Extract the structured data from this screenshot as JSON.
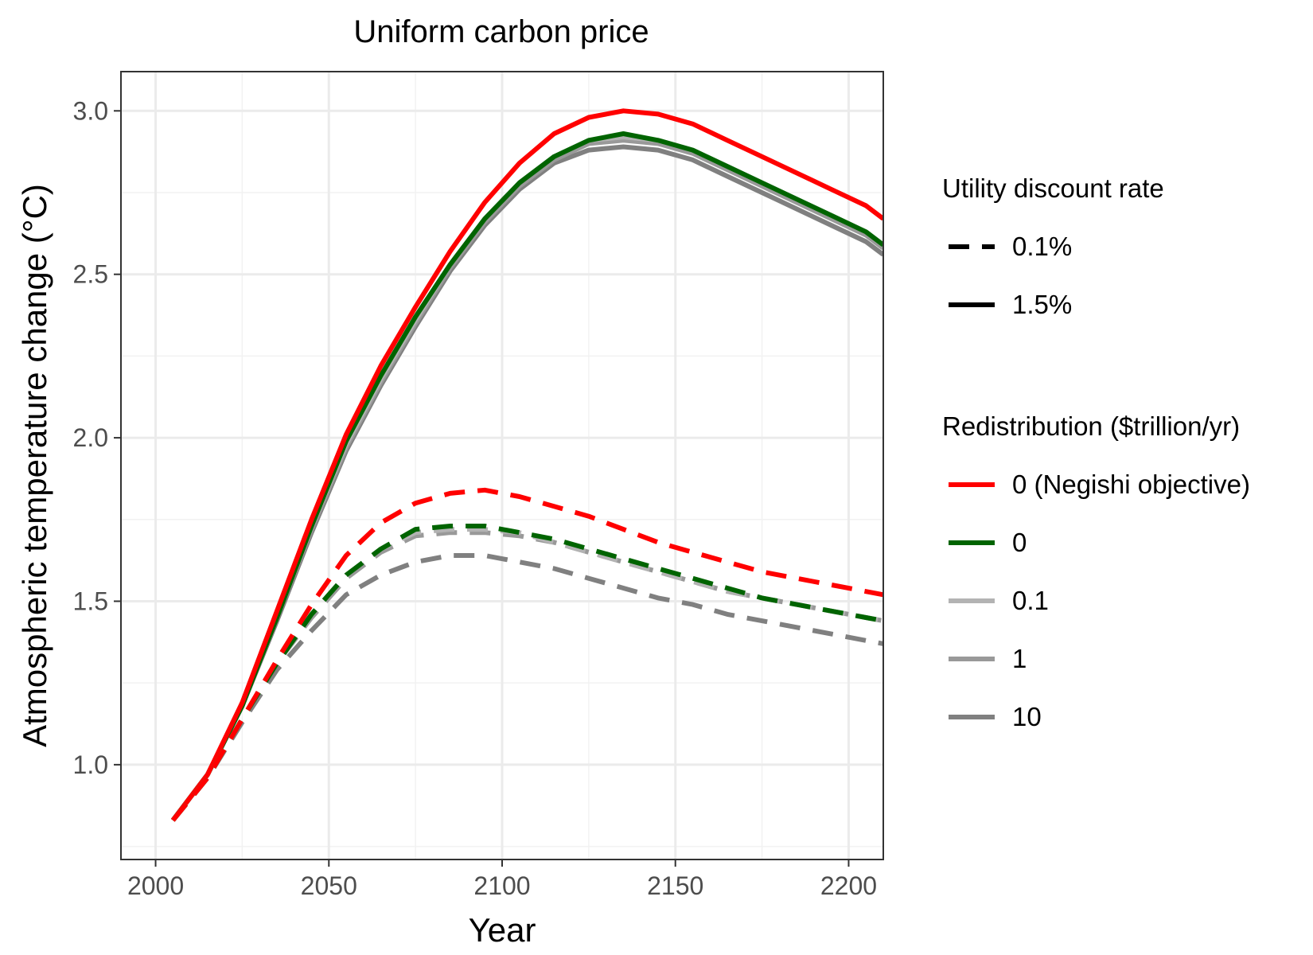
{
  "chart_data": {
    "type": "line",
    "title": "Uniform carbon price",
    "xlabel": "Year",
    "ylabel": "Atmospheric temperature change (°C)",
    "xlim": [
      1990,
      2210
    ],
    "ylim": [
      0.71,
      3.12
    ],
    "x_ticks": [
      "2000",
      "2050",
      "2100",
      "2150",
      "2200"
    ],
    "y_ticks": [
      "1.0",
      "1.5",
      "2.0",
      "2.5",
      "3.0"
    ],
    "grid": true,
    "legend_position": "right",
    "legends": [
      {
        "title": "Utility discount rate",
        "entries": [
          {
            "label": "0.1%",
            "linestyle": "dashed"
          },
          {
            "label": "1.5%",
            "linestyle": "solid"
          }
        ]
      },
      {
        "title": "Redistribution ($trillion/yr)",
        "entries": [
          {
            "label": "0 (Negishi objective)",
            "color": "#ff0000"
          },
          {
            "label": "0",
            "color": "#006400"
          },
          {
            "label": "0.1",
            "color": "#b3b3b3"
          },
          {
            "label": "1",
            "color": "#999999"
          },
          {
            "label": "10",
            "color": "#808080"
          }
        ]
      }
    ],
    "x": [
      2005,
      2015,
      2025,
      2035,
      2045,
      2055,
      2065,
      2075,
      2085,
      2095,
      2105,
      2115,
      2125,
      2135,
      2145,
      2155,
      2165,
      2175,
      2185,
      2195,
      2205,
      2210
    ],
    "series": [
      {
        "redistribution": "10",
        "discount": "1.5%",
        "color": "#808080",
        "dash": "solid",
        "values": [
          0.83,
          0.97,
          1.18,
          1.44,
          1.71,
          1.96,
          2.16,
          2.34,
          2.51,
          2.65,
          2.76,
          2.84,
          2.88,
          2.89,
          2.88,
          2.85,
          2.8,
          2.75,
          2.7,
          2.65,
          2.6,
          2.56
        ]
      },
      {
        "redistribution": "1",
        "discount": "1.5%",
        "color": "#999999",
        "dash": "solid",
        "values": [
          0.83,
          0.97,
          1.18,
          1.45,
          1.72,
          1.97,
          2.17,
          2.35,
          2.52,
          2.66,
          2.77,
          2.85,
          2.9,
          2.91,
          2.9,
          2.87,
          2.82,
          2.77,
          2.72,
          2.67,
          2.62,
          2.58
        ]
      },
      {
        "redistribution": "0.1",
        "discount": "1.5%",
        "color": "#b3b3b3",
        "dash": "solid",
        "values": [
          0.83,
          0.97,
          1.18,
          1.45,
          1.73,
          1.98,
          2.18,
          2.36,
          2.53,
          2.67,
          2.78,
          2.86,
          2.91,
          2.92,
          2.91,
          2.88,
          2.83,
          2.78,
          2.73,
          2.68,
          2.63,
          2.59
        ]
      },
      {
        "redistribution": "0",
        "discount": "1.5%",
        "color": "#006400",
        "dash": "solid",
        "values": [
          0.83,
          0.97,
          1.18,
          1.45,
          1.73,
          1.99,
          2.19,
          2.37,
          2.53,
          2.67,
          2.78,
          2.86,
          2.91,
          2.93,
          2.91,
          2.88,
          2.83,
          2.78,
          2.73,
          2.68,
          2.63,
          2.59
        ]
      },
      {
        "redistribution": "0 (Negishi objective)",
        "discount": "1.5%",
        "color": "#ff0000",
        "dash": "solid",
        "values": [
          0.83,
          0.97,
          1.19,
          1.47,
          1.75,
          2.01,
          2.22,
          2.4,
          2.57,
          2.72,
          2.84,
          2.93,
          2.98,
          3.0,
          2.99,
          2.96,
          2.91,
          2.86,
          2.81,
          2.76,
          2.71,
          2.67
        ]
      },
      {
        "redistribution": "10",
        "discount": "0.1%",
        "color": "#808080",
        "dash": "dashed",
        "values": [
          0.83,
          0.96,
          1.13,
          1.29,
          1.41,
          1.52,
          1.58,
          1.62,
          1.64,
          1.64,
          1.62,
          1.6,
          1.57,
          1.54,
          1.51,
          1.49,
          1.46,
          1.44,
          1.42,
          1.4,
          1.38,
          1.37
        ]
      },
      {
        "redistribution": "1",
        "discount": "0.1%",
        "color": "#999999",
        "dash": "dashed",
        "values": [
          0.83,
          0.96,
          1.14,
          1.31,
          1.45,
          1.57,
          1.65,
          1.7,
          1.71,
          1.71,
          1.7,
          1.68,
          1.65,
          1.62,
          1.59,
          1.56,
          1.53,
          1.51,
          1.49,
          1.47,
          1.45,
          1.44
        ]
      },
      {
        "redistribution": "0.1",
        "discount": "0.1%",
        "color": "#b3b3b3",
        "dash": "dashed",
        "values": [
          0.83,
          0.96,
          1.14,
          1.31,
          1.46,
          1.58,
          1.66,
          1.71,
          1.72,
          1.72,
          1.71,
          1.68,
          1.65,
          1.62,
          1.59,
          1.56,
          1.53,
          1.51,
          1.49,
          1.47,
          1.45,
          1.44
        ]
      },
      {
        "redistribution": "0",
        "discount": "0.1%",
        "color": "#006400",
        "dash": "dashed",
        "values": [
          0.83,
          0.96,
          1.14,
          1.31,
          1.46,
          1.58,
          1.66,
          1.72,
          1.73,
          1.73,
          1.71,
          1.69,
          1.66,
          1.63,
          1.6,
          1.57,
          1.54,
          1.51,
          1.49,
          1.47,
          1.45,
          1.44
        ]
      },
      {
        "redistribution": "0 (Negishi objective)",
        "discount": "0.1%",
        "color": "#ff0000",
        "dash": "dashed",
        "values": [
          0.83,
          0.96,
          1.14,
          1.32,
          1.49,
          1.64,
          1.74,
          1.8,
          1.83,
          1.84,
          1.82,
          1.79,
          1.76,
          1.72,
          1.68,
          1.65,
          1.62,
          1.59,
          1.57,
          1.55,
          1.53,
          1.52
        ]
      }
    ]
  }
}
